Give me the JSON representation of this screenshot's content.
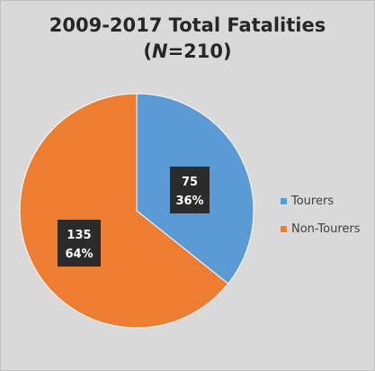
{
  "chart_data": {
    "type": "pie",
    "title_line1": "2009-2017 Total Fatalities",
    "title_n_label": "N",
    "title_n_value": "=210",
    "slices": [
      {
        "name": "Tourers",
        "value": 75,
        "percent_label": "36%",
        "color": "#5b9bd5"
      },
      {
        "name": "Non-Tourers",
        "value": 135,
        "percent_label": "64%",
        "color": "#ed7d31"
      }
    ],
    "total": 210,
    "legend_position": "right"
  }
}
